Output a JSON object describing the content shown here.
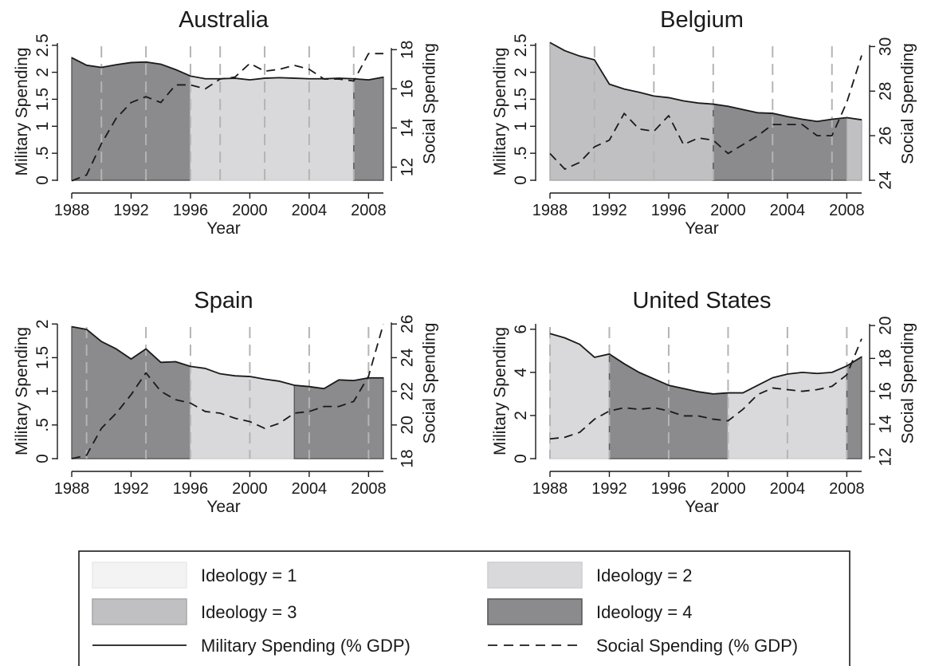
{
  "chart_data": [
    {
      "type": "area",
      "title": "Australia",
      "xlabel": "Year",
      "ylabel": "Military Spending",
      "y2label": "Social Spending",
      "xlim": [
        1988,
        2009
      ],
      "ylim": [
        0,
        2.6
      ],
      "y2lim": [
        11.33,
        18.5
      ],
      "xticks": [
        1988,
        1992,
        1996,
        2000,
        2004,
        2008
      ],
      "xtick_labels": [
        "1988",
        "1992",
        "1996",
        "2000",
        "2004",
        "2008"
      ],
      "yticks": [
        0,
        0.5,
        1,
        1.5,
        2,
        2.5
      ],
      "ytick_labels": [
        "0",
        ".5",
        "1",
        "1.5",
        "2",
        "2.5"
      ],
      "y2ticks": [
        12,
        14,
        16,
        18
      ],
      "y2tick_labels": [
        "12",
        "14",
        "16",
        "18"
      ],
      "election_years": [
        1990,
        1993,
        1996,
        1998,
        2001,
        2004,
        2007
      ],
      "ideology_periods": [
        {
          "start": 1988,
          "end": 1996,
          "ideology": 4
        },
        {
          "start": 1996,
          "end": 2007,
          "ideology": 2
        },
        {
          "start": 2007,
          "end": 2009,
          "ideology": 4
        }
      ],
      "series": [
        {
          "name": "Military Spending (% GDP)",
          "axis": "left",
          "style": "solid",
          "x": [
            1988,
            1989,
            1990,
            1991,
            1992,
            1993,
            1994,
            1995,
            1996,
            1997,
            1998,
            1999,
            2000,
            2001,
            2002,
            2003,
            2004,
            2005,
            2006,
            2007,
            2008,
            2009
          ],
          "values": [
            2.27,
            2.13,
            2.09,
            2.14,
            2.18,
            2.19,
            2.15,
            2.05,
            1.93,
            1.88,
            1.88,
            1.89,
            1.86,
            1.89,
            1.9,
            1.89,
            1.88,
            1.88,
            1.89,
            1.88,
            1.86,
            1.91
          ]
        },
        {
          "name": "Social Spending (% GDP)",
          "axis": "right",
          "style": "dashed",
          "x": [
            1988,
            1989,
            1990,
            1991,
            1992,
            1993,
            1994,
            1995,
            1996,
            1997,
            1998,
            1999,
            2000,
            2001,
            2002,
            2003,
            2004,
            2005,
            2006,
            2007,
            2008,
            2009
          ],
          "values": [
            11.3,
            11.6,
            13.2,
            14.5,
            15.3,
            15.6,
            15.3,
            16.2,
            16.2,
            16.0,
            16.5,
            16.6,
            17.3,
            16.9,
            17.0,
            17.2,
            17.0,
            16.5,
            16.5,
            16.4,
            17.8,
            17.8
          ]
        }
      ]
    },
    {
      "type": "area",
      "title": "Belgium",
      "xlabel": "Year",
      "ylabel": "Military Spending",
      "y2label": "Social Spending",
      "xlim": [
        1988,
        2009
      ],
      "ylim": [
        0,
        2.6
      ],
      "y2lim": [
        24,
        30.3
      ],
      "xticks": [
        1988,
        1992,
        1996,
        2000,
        2004,
        2008
      ],
      "xtick_labels": [
        "1988",
        "1992",
        "1996",
        "2000",
        "2004",
        "2008"
      ],
      "yticks": [
        0,
        0.5,
        1,
        1.5,
        2,
        2.5
      ],
      "ytick_labels": [
        "0",
        ".5",
        "1",
        "1.5",
        "2",
        "2.5"
      ],
      "y2ticks": [
        24,
        26,
        28,
        30
      ],
      "y2tick_labels": [
        "24",
        "26",
        "28",
        "30"
      ],
      "election_years": [
        1991,
        1995,
        1999,
        2003,
        2007
      ],
      "ideology_periods": [
        {
          "start": 1988,
          "end": 1999,
          "ideology": 3
        },
        {
          "start": 1999,
          "end": 2008,
          "ideology": 4
        },
        {
          "start": 2008,
          "end": 2009,
          "ideology": 3
        }
      ],
      "series": [
        {
          "name": "Military Spending (% GDP)",
          "axis": "left",
          "style": "solid",
          "x": [
            1988,
            1989,
            1990,
            1991,
            1992,
            1993,
            1994,
            1995,
            1996,
            1997,
            1998,
            1999,
            2000,
            2001,
            2002,
            2003,
            2004,
            2005,
            2006,
            2007,
            2008,
            2009
          ],
          "values": [
            2.55,
            2.4,
            2.3,
            2.23,
            1.78,
            1.69,
            1.63,
            1.56,
            1.53,
            1.47,
            1.43,
            1.41,
            1.37,
            1.31,
            1.25,
            1.24,
            1.18,
            1.13,
            1.09,
            1.13,
            1.16,
            1.12
          ]
        },
        {
          "name": "Social Spending (% GDP)",
          "axis": "right",
          "style": "dashed",
          "x": [
            1988,
            1989,
            1990,
            1991,
            1992,
            1993,
            1994,
            1995,
            1996,
            1997,
            1998,
            1999,
            2000,
            2001,
            2002,
            2003,
            2004,
            2005,
            2006,
            2007,
            2008,
            2009
          ],
          "values": [
            25.2,
            24.5,
            24.8,
            25.5,
            25.8,
            27.0,
            26.3,
            26.2,
            26.9,
            25.6,
            25.9,
            25.8,
            25.2,
            25.6,
            26.0,
            26.5,
            26.5,
            26.5,
            26.0,
            26.0,
            27.5,
            29.6
          ]
        }
      ]
    },
    {
      "type": "area",
      "title": "Spain",
      "xlabel": "Year",
      "ylabel": "Military Spending",
      "y2label": "Social Spending",
      "xlim": [
        1988,
        2009
      ],
      "ylim": [
        0,
        2.05
      ],
      "y2lim": [
        18,
        26.2
      ],
      "xticks": [
        1988,
        1992,
        1996,
        2000,
        2004,
        2008
      ],
      "xtick_labels": [
        "1988",
        "1992",
        "1996",
        "2000",
        "2004",
        "2008"
      ],
      "yticks": [
        0,
        0.5,
        1,
        1.5,
        2
      ],
      "ytick_labels": [
        "0",
        ".5",
        "1",
        "1.5",
        "2"
      ],
      "y2ticks": [
        18,
        20,
        22,
        24,
        26
      ],
      "y2tick_labels": [
        "18",
        "20",
        "22",
        "24",
        "26"
      ],
      "election_years": [
        1989,
        1993,
        1996,
        2000,
        2004,
        2008
      ],
      "ideology_periods": [
        {
          "start": 1988,
          "end": 1996,
          "ideology": 4
        },
        {
          "start": 1996,
          "end": 2003,
          "ideology": 2
        },
        {
          "start": 2003,
          "end": 2009,
          "ideology": 4
        }
      ],
      "series": [
        {
          "name": "Military Spending (% GDP)",
          "axis": "left",
          "style": "solid",
          "x": [
            1988,
            1989,
            1990,
            1991,
            1992,
            1993,
            1994,
            1995,
            1996,
            1997,
            1998,
            1999,
            2000,
            2001,
            2002,
            2003,
            2004,
            2005,
            2006,
            2007,
            2008,
            2009
          ],
          "values": [
            1.96,
            1.92,
            1.74,
            1.63,
            1.48,
            1.63,
            1.43,
            1.44,
            1.37,
            1.34,
            1.26,
            1.23,
            1.22,
            1.18,
            1.15,
            1.09,
            1.07,
            1.04,
            1.17,
            1.16,
            1.2,
            1.2
          ]
        },
        {
          "name": "Social Spending (% GDP)",
          "axis": "right",
          "style": "dashed",
          "x": [
            1988,
            1989,
            1990,
            1991,
            1992,
            1993,
            1994,
            1995,
            1996,
            1997,
            1998,
            1999,
            2000,
            2001,
            2002,
            2003,
            2004,
            2005,
            2006,
            2007,
            2008,
            2009
          ],
          "values": [
            18.0,
            18.2,
            19.8,
            20.7,
            21.8,
            23.1,
            22.0,
            21.5,
            21.3,
            20.8,
            20.7,
            20.4,
            20.2,
            19.8,
            20.1,
            20.7,
            20.8,
            21.1,
            21.1,
            21.4,
            22.9,
            26.0
          ]
        }
      ]
    },
    {
      "type": "area",
      "title": "United States",
      "xlabel": "Year",
      "ylabel": "Military Spending",
      "y2label": "Social Spending",
      "xlim": [
        1988,
        2009
      ],
      "ylim": [
        0,
        6.4
      ],
      "y2lim": [
        11.9,
        20.3
      ],
      "xticks": [
        1988,
        1992,
        1996,
        2000,
        2004,
        2008
      ],
      "xtick_labels": [
        "1988",
        "1992",
        "1996",
        "2000",
        "2004",
        "2008"
      ],
      "yticks": [
        0,
        2,
        4,
        6
      ],
      "ytick_labels": [
        "0",
        "2",
        "4",
        "6"
      ],
      "y2ticks": [
        12,
        14,
        16,
        18,
        20
      ],
      "y2tick_labels": [
        "12",
        "14",
        "16",
        "18",
        "20"
      ],
      "election_years": [
        1988,
        1992,
        1996,
        2000,
        2004,
        2008
      ],
      "ideology_periods": [
        {
          "start": 1988,
          "end": 1992,
          "ideology": 2
        },
        {
          "start": 1992,
          "end": 2000,
          "ideology": 4
        },
        {
          "start": 2000,
          "end": 2008,
          "ideology": 2
        },
        {
          "start": 2008,
          "end": 2009,
          "ideology": 4
        }
      ],
      "series": [
        {
          "name": "Military Spending (% GDP)",
          "axis": "left",
          "style": "solid",
          "x": [
            1988,
            1989,
            1990,
            1991,
            1992,
            1993,
            1994,
            1995,
            1996,
            1997,
            1998,
            1999,
            2000,
            2001,
            2002,
            2003,
            2004,
            2005,
            2006,
            2007,
            2008,
            2009
          ],
          "values": [
            5.8,
            5.6,
            5.3,
            4.7,
            4.85,
            4.4,
            4.0,
            3.7,
            3.4,
            3.25,
            3.1,
            3.0,
            3.05,
            3.05,
            3.4,
            3.75,
            3.92,
            4.0,
            3.95,
            4.0,
            4.3,
            4.72
          ]
        },
        {
          "name": "Social Spending (% GDP)",
          "axis": "right",
          "style": "dashed",
          "x": [
            1988,
            1989,
            1990,
            1991,
            1992,
            1993,
            1994,
            1995,
            1996,
            1997,
            1998,
            1999,
            2000,
            2001,
            2002,
            2003,
            2004,
            2005,
            2006,
            2007,
            2008,
            2009
          ],
          "values": [
            13.1,
            13.2,
            13.5,
            14.3,
            14.8,
            15.0,
            14.9,
            15.0,
            14.8,
            14.5,
            14.5,
            14.3,
            14.2,
            14.9,
            15.8,
            16.2,
            16.1,
            16.0,
            16.1,
            16.3,
            17.0,
            19.2
          ]
        }
      ]
    }
  ],
  "legend": {
    "items": [
      {
        "label": "Ideology = 1",
        "kind": "area",
        "ideology": 1
      },
      {
        "label": "Ideology = 2",
        "kind": "area",
        "ideology": 2
      },
      {
        "label": "Ideology = 3",
        "kind": "area",
        "ideology": 3
      },
      {
        "label": "Ideology = 4",
        "kind": "area",
        "ideology": 4
      },
      {
        "label": "Military Spending (% GDP)",
        "kind": "line",
        "style": "solid"
      },
      {
        "label": "Social Spending (% GDP)",
        "kind": "line",
        "style": "dashed"
      }
    ]
  },
  "colors": {
    "ideology_1_fill": "#f3f3f3",
    "ideology_1_edge": "#eaeaea",
    "ideology_2_fill": "#d9d9dc",
    "ideology_2_edge": "#cfcfd2",
    "ideology_3_fill": "#c0c0c2",
    "ideology_3_edge": "#aaaaac",
    "ideology_4_fill": "#8b8b8e",
    "ideology_4_edge": "#5a5a5c",
    "military_line": "#1a1a1a",
    "social_line": "#1a1a1a",
    "election_line": "#b4b4b4",
    "axis": "#1a1a1a"
  }
}
